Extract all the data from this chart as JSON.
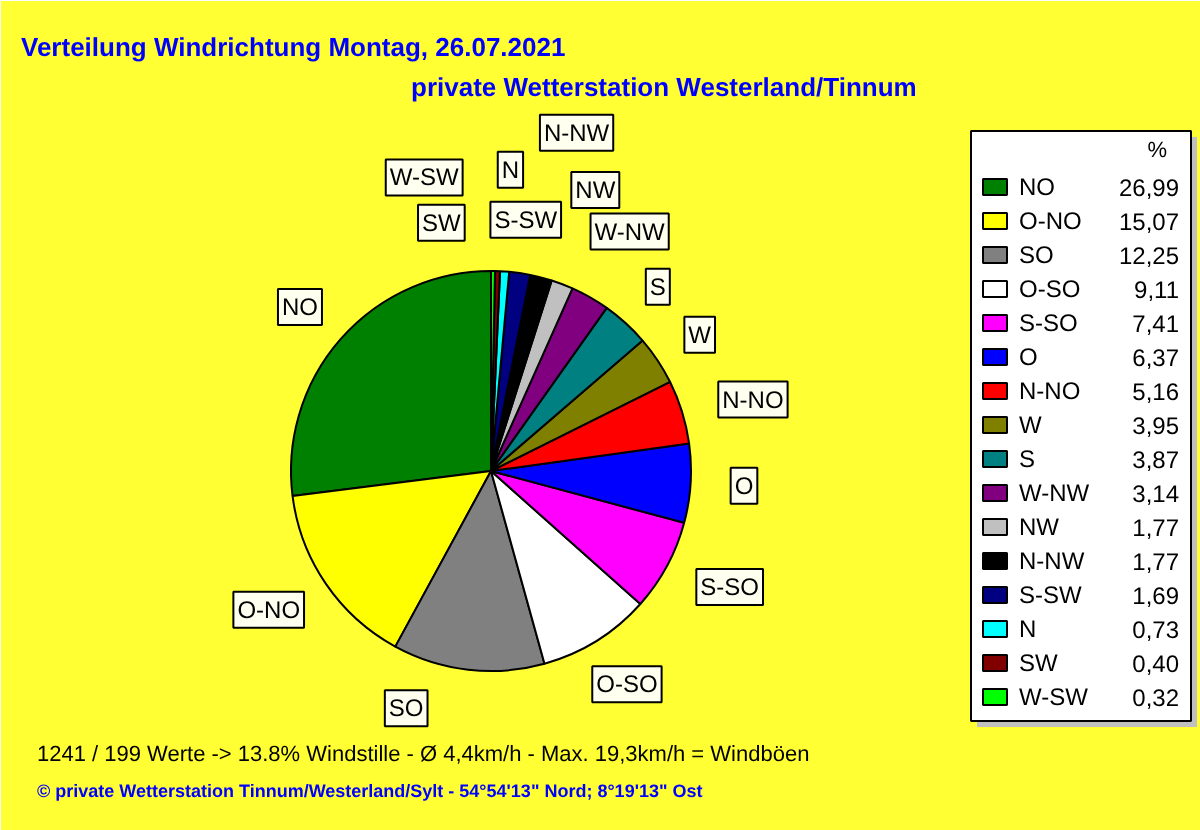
{
  "chart_data": {
    "type": "pie",
    "title": "Verteilung Windrichtung   Montag, 26.07.2021",
    "subtitle": "private Wetterstation Westerland/Tinnum",
    "legend_title": "%",
    "legend": "right",
    "categories": [
      "NO",
      "O-NO",
      "SO",
      "O-SO",
      "S-SO",
      "O",
      "N-NO",
      "W",
      "S",
      "W-NW",
      "NW",
      "N-NW",
      "S-SW",
      "N",
      "SW",
      "W-SW"
    ],
    "values": [
      26.99,
      15.07,
      12.25,
      9.11,
      7.41,
      6.37,
      5.16,
      3.95,
      3.87,
      3.14,
      1.77,
      1.77,
      1.69,
      0.73,
      0.4,
      0.32
    ],
    "value_labels": [
      "26,99",
      "15,07",
      "12,25",
      "9,11",
      "7,41",
      "6,37",
      "5,16",
      "3,95",
      "3,87",
      "3,14",
      "1,77",
      "1,77",
      "1,69",
      "0,73",
      "0,40",
      "0,32"
    ],
    "colors": [
      "#008000",
      "#ffff00",
      "#808080",
      "#ffffff",
      "#ff00ff",
      "#0000ff",
      "#ff0000",
      "#808000",
      "#008080",
      "#800080",
      "#c0c0c0",
      "#000000",
      "#000080",
      "#00ffff",
      "#800000",
      "#00ff00"
    ],
    "annotations": [
      "1241 / 199 Werte  -> 13.8% Windstille   -   Ø 4,4km/h  -  Max. 19,3km/h = Windböen",
      "© private Wetterstation Tinnum/Westerland/Sylt  -  54°54'13\" Nord; 8°19'13\" Ost"
    ]
  }
}
